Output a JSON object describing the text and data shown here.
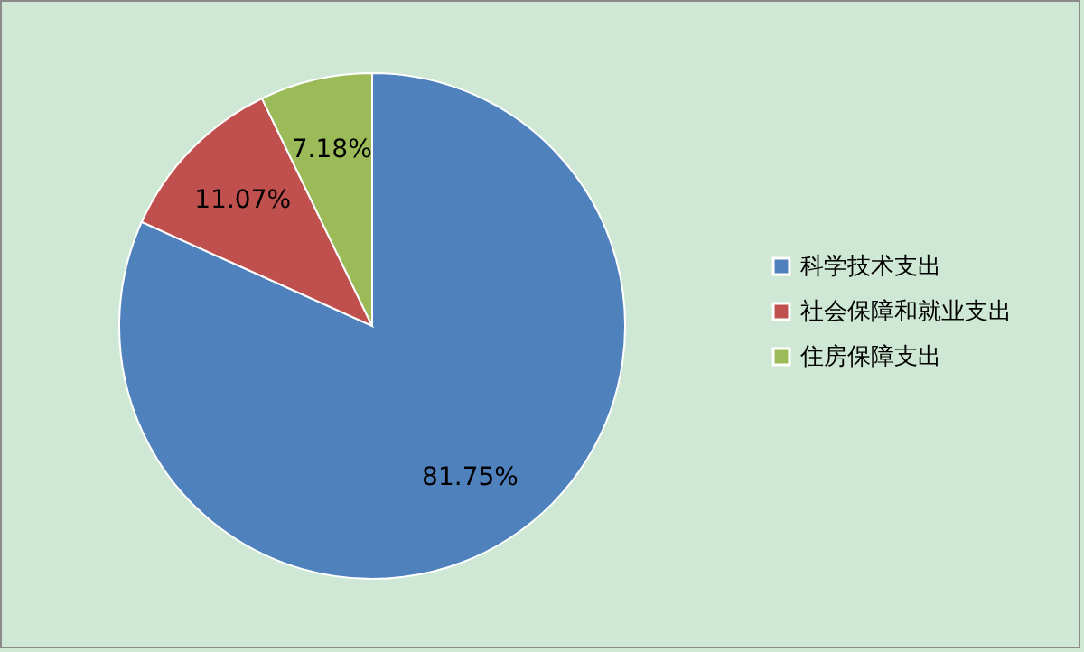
{
  "chart_data": {
    "type": "pie",
    "categories": [
      "科学技术支出",
      "社会保障和就业支出",
      "住房保障支出"
    ],
    "values": [
      81.75,
      11.07,
      7.18
    ],
    "colors": [
      "#4f81bd",
      "#c0504d",
      "#9bbb59"
    ],
    "value_labels": [
      "81.75%",
      "11.07%",
      "7.18%"
    ],
    "legend": "right"
  }
}
